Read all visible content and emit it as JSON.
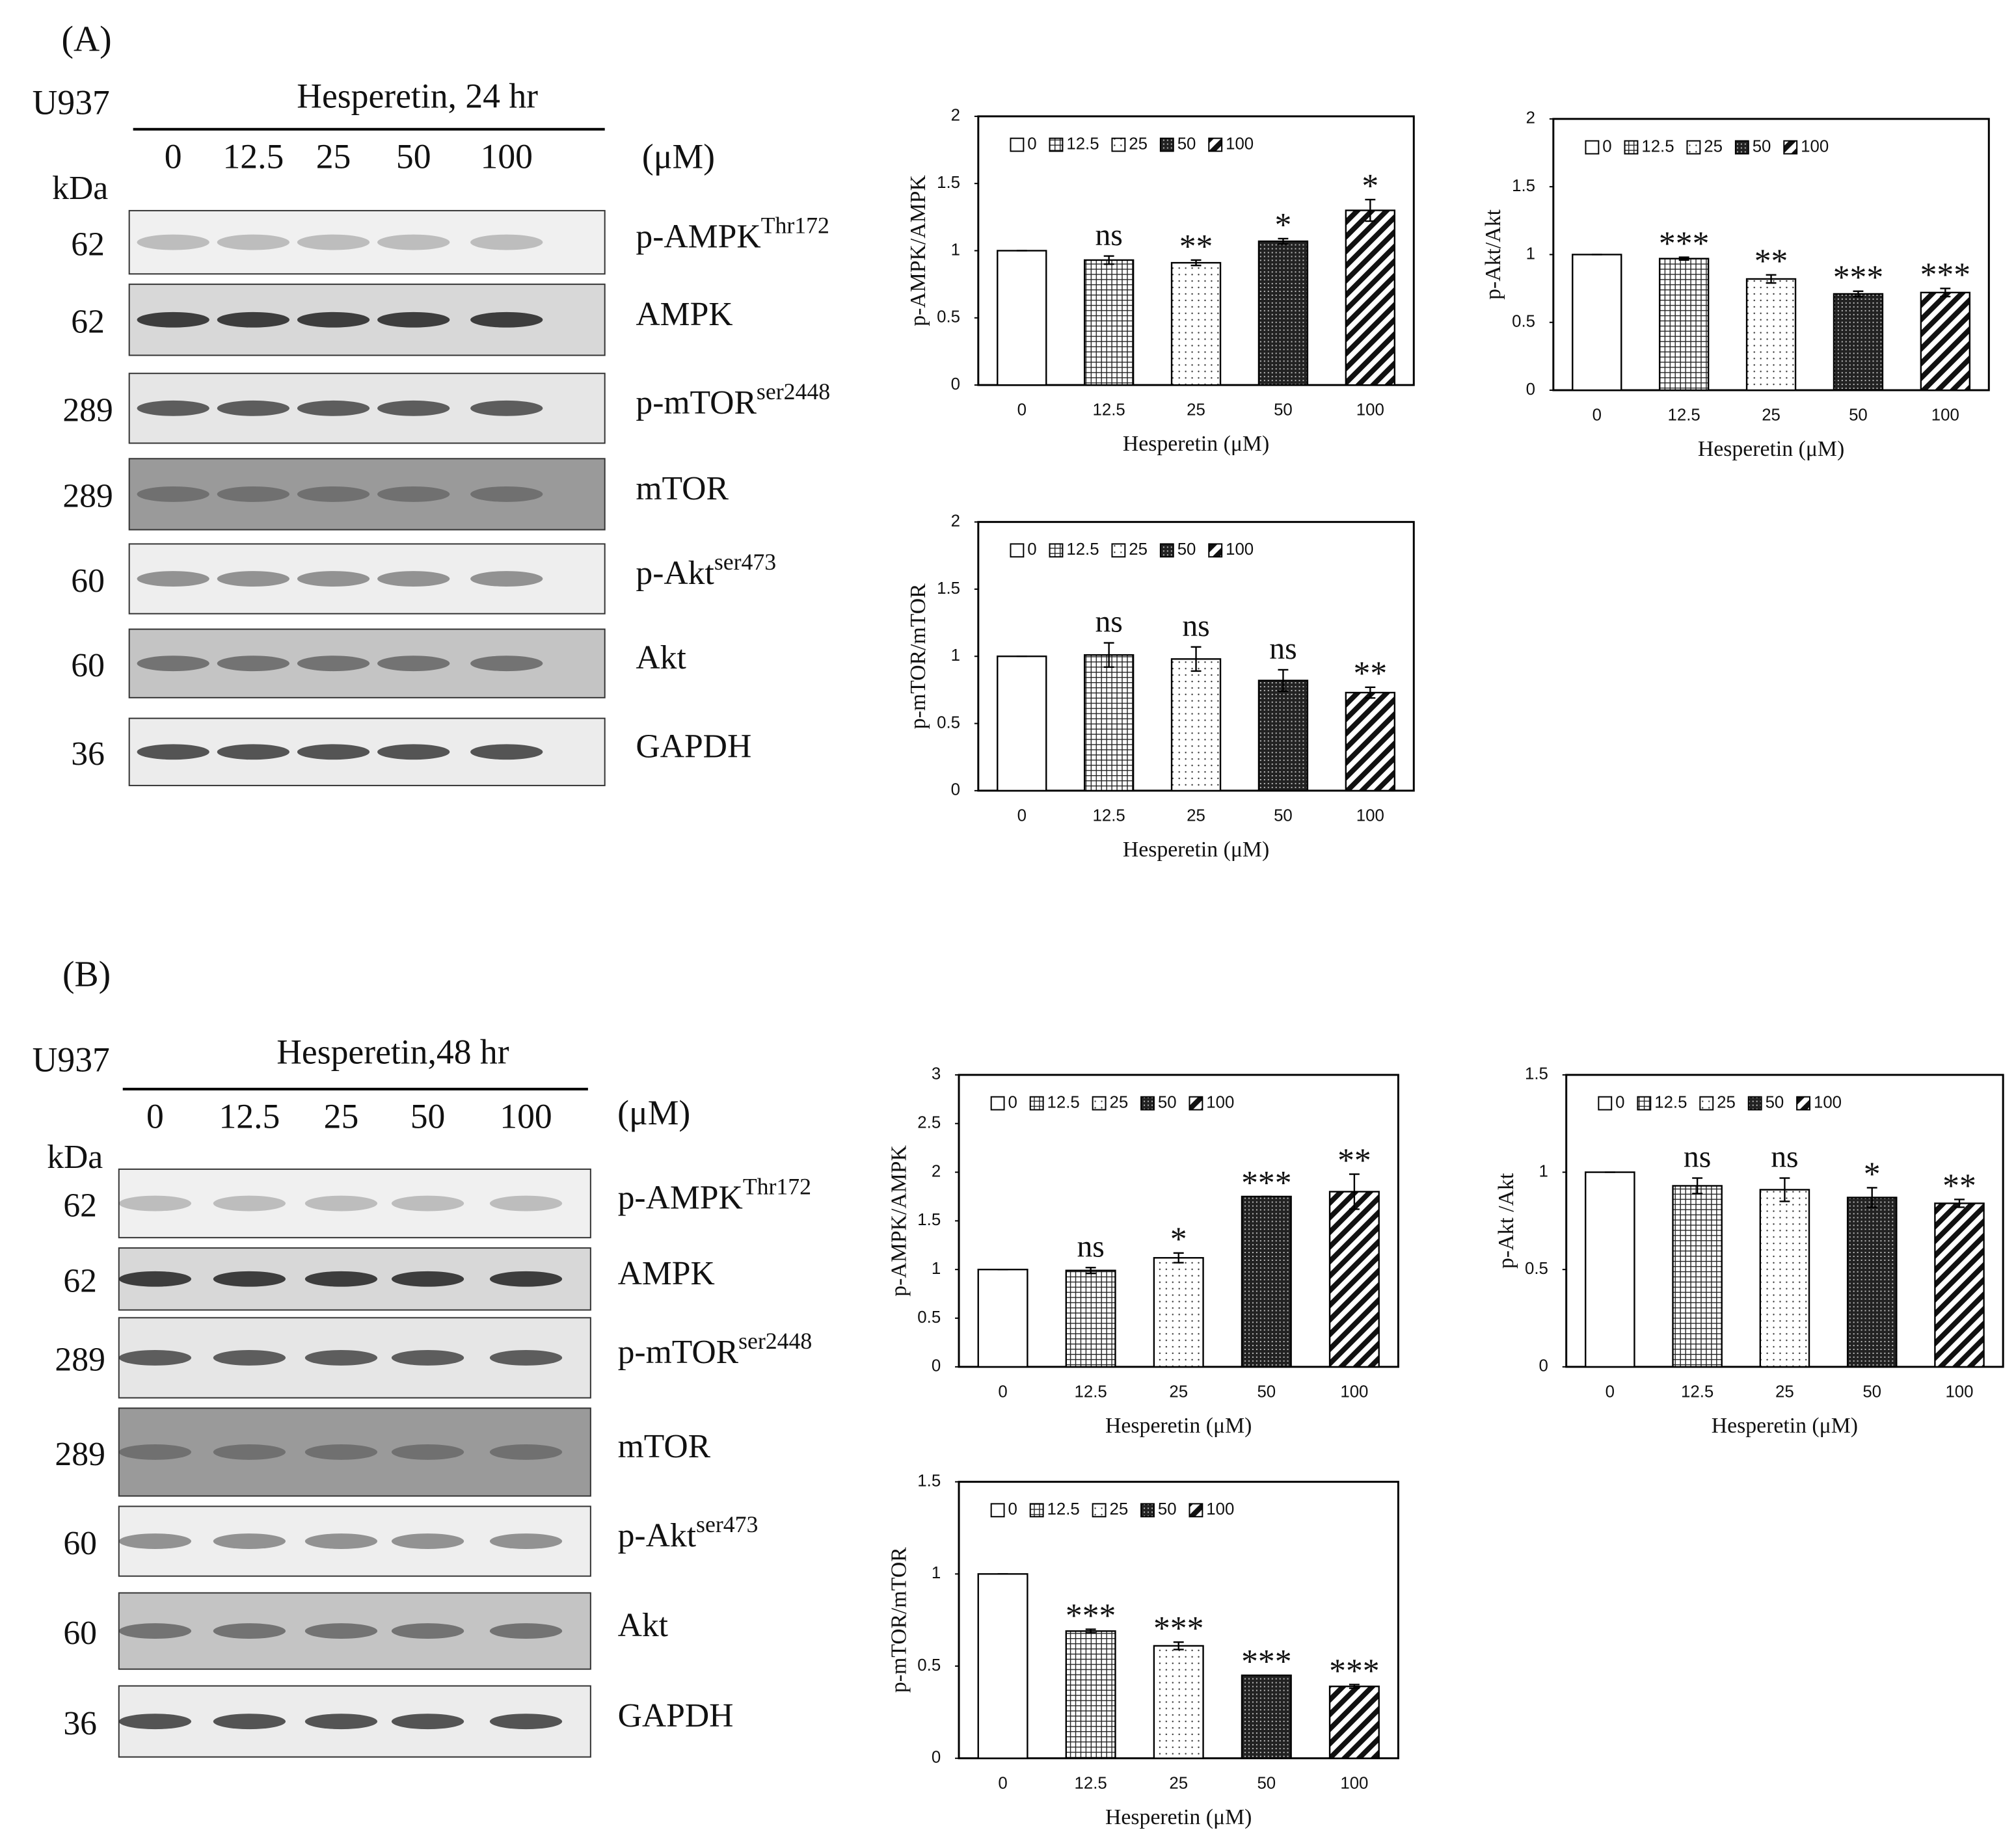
{
  "panels": [
    {
      "label": "(A)",
      "cell_line": "U937",
      "treatment": "Hesperetin, 24 hr",
      "kda_label": "kDa",
      "unit": "(μM)",
      "concentrations": [
        "0",
        "12.5",
        "25",
        "50",
        "100"
      ],
      "blots": [
        {
          "kda": "62",
          "protein": "p-AMPK",
          "superscript": "Thr172"
        },
        {
          "kda": "62",
          "protein": "AMPK"
        },
        {
          "kda": "289",
          "protein": "p-mTOR",
          "superscript": "ser2448"
        },
        {
          "kda": "289",
          "protein": "mTOR"
        },
        {
          "kda": "60",
          "protein": "p-Akt",
          "superscript": "ser473"
        },
        {
          "kda": "60",
          "protein": "Akt"
        },
        {
          "kda": "36",
          "protein": "GAPDH"
        }
      ]
    },
    {
      "label": "(B)",
      "cell_line": "U937",
      "treatment": "Hesperetin,48 hr",
      "kda_label": "kDa",
      "unit": "(μM)",
      "concentrations": [
        "0",
        "12.5",
        "25",
        "50",
        "100"
      ],
      "blots": [
        {
          "kda": "62",
          "protein": "p-AMPK",
          "superscript": "Thr172"
        },
        {
          "kda": "62",
          "protein": "AMPK"
        },
        {
          "kda": "289",
          "protein": "p-mTOR",
          "superscript": "ser2448"
        },
        {
          "kda": "289",
          "protein": "mTOR"
        },
        {
          "kda": "60",
          "protein": "p-Akt",
          "superscript": "ser473"
        },
        {
          "kda": "60",
          "protein": "Akt"
        },
        {
          "kda": "36",
          "protein": "GAPDH"
        }
      ]
    }
  ],
  "chart_data": [
    {
      "type": "bar",
      "ylabel": "p-AMPK/AMPK",
      "xlabel": "Hesperetin (μM)",
      "categories": [
        "0",
        "12.5",
        "25",
        "50",
        "100"
      ],
      "values": [
        1,
        0.93,
        0.91,
        1.07,
        1.3
      ],
      "errors": [
        0,
        0.03,
        0.02,
        0.02,
        0.08
      ],
      "annotations": [
        null,
        "ns",
        "**",
        "*",
        "*"
      ],
      "fill_patterns": [
        "none",
        "grid",
        "dots",
        "dense",
        "diagonal"
      ],
      "ylim": [
        0,
        2
      ],
      "yticks": [
        0,
        0.5,
        1,
        1.5,
        2
      ]
    },
    {
      "type": "bar",
      "ylabel": "p-Akt/Akt",
      "xlabel": "Hesperetin (μM)",
      "categories": [
        "0",
        "12.5",
        "25",
        "50",
        "100"
      ],
      "values": [
        1,
        0.97,
        0.82,
        0.71,
        0.72
      ],
      "errors": [
        0,
        0.01,
        0.03,
        0.02,
        0.03
      ],
      "annotations": [
        null,
        "***",
        "**",
        "***",
        "***"
      ],
      "fill_patterns": [
        "none",
        "grid",
        "dots",
        "dense",
        "diagonal"
      ],
      "ylim": [
        0,
        2
      ],
      "yticks": [
        0,
        0.5,
        1,
        1.5,
        2
      ]
    },
    {
      "type": "bar",
      "ylabel": "p-mTOR/mTOR",
      "xlabel": "Hesperetin (μM)",
      "categories": [
        "0",
        "12.5",
        "25",
        "50",
        "100"
      ],
      "values": [
        1,
        1.01,
        0.98,
        0.82,
        0.73
      ],
      "errors": [
        0,
        0.09,
        0.09,
        0.08,
        0.04
      ],
      "annotations": [
        null,
        "ns",
        "ns",
        "ns",
        "**"
      ],
      "fill_patterns": [
        "none",
        "grid",
        "dots",
        "dense",
        "diagonal"
      ],
      "ylim": [
        0,
        2
      ],
      "yticks": [
        0,
        0.5,
        1,
        1.5,
        2
      ]
    },
    {
      "type": "bar",
      "ylabel": "p-AMPK/AMPK",
      "xlabel": "Hesperetin (μM)",
      "categories": [
        "0",
        "12.5",
        "25",
        "50",
        "100"
      ],
      "values": [
        1,
        0.99,
        1.12,
        1.75,
        1.8
      ],
      "errors": [
        0,
        0.03,
        0.05,
        0,
        0.18
      ],
      "annotations": [
        null,
        "ns",
        "*",
        "***",
        "**"
      ],
      "fill_patterns": [
        "none",
        "grid",
        "dots",
        "dense",
        "diagonal"
      ],
      "ylim": [
        0,
        3
      ],
      "yticks": [
        0,
        0.5,
        1,
        1.5,
        2,
        2.5,
        3
      ]
    },
    {
      "type": "bar",
      "ylabel": "p-Akt /Akt",
      "xlabel": "Hesperetin (μM)",
      "categories": [
        "0",
        "12.5",
        "25",
        "50",
        "100"
      ],
      "values": [
        1,
        0.93,
        0.91,
        0.87,
        0.84
      ],
      "errors": [
        0,
        0.04,
        0.06,
        0.05,
        0.02
      ],
      "annotations": [
        null,
        "ns",
        "ns",
        "*",
        "**"
      ],
      "fill_patterns": [
        "none",
        "grid",
        "dots",
        "dense",
        "diagonal"
      ],
      "ylim": [
        0,
        1.5
      ],
      "yticks": [
        0,
        0.5,
        1,
        1.5
      ]
    },
    {
      "type": "bar",
      "ylabel": "p-mTOR/mTOR",
      "xlabel": "Hesperetin (μM)",
      "categories": [
        "0",
        "12.5",
        "25",
        "50",
        "100"
      ],
      "values": [
        1,
        0.69,
        0.61,
        0.45,
        0.39
      ],
      "errors": [
        0,
        0.01,
        0.02,
        0,
        0.01
      ],
      "annotations": [
        null,
        "***",
        "***",
        "***",
        "***"
      ],
      "fill_patterns": [
        "none",
        "grid",
        "dots",
        "dense",
        "diagonal"
      ],
      "ylim": [
        0,
        1.5
      ],
      "yticks": [
        0,
        0.5,
        1,
        1.5
      ]
    }
  ]
}
